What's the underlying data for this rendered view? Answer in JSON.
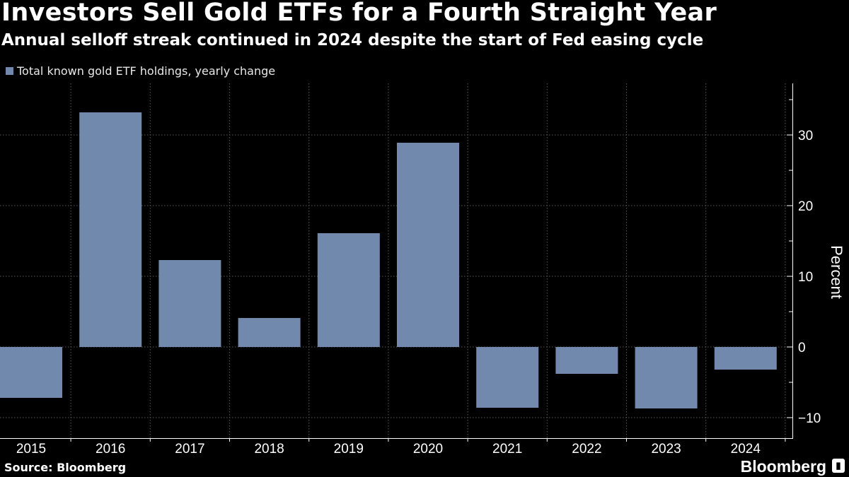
{
  "chart_data": {
    "type": "bar",
    "title": "Investors Sell Gold ETFs for a Fourth Straight Year",
    "subtitle": "Annual selloff streak continued in 2024 despite the start of Fed easing cycle",
    "legend": "Total known gold ETF holdings, yearly change",
    "categories": [
      "2015",
      "2016",
      "2017",
      "2018",
      "2019",
      "2020",
      "2021",
      "2022",
      "2023",
      "2024"
    ],
    "values": [
      -7.2,
      33.2,
      12.3,
      4.1,
      16.1,
      28.9,
      -8.6,
      -3.8,
      -8.7,
      -3.2
    ],
    "ylabel": "Percent",
    "ylim": [
      -13,
      37
    ],
    "yticks": [
      "30",
      "20",
      "10",
      "0",
      "−10"
    ],
    "ytick_values": [
      30,
      20,
      10,
      0,
      -10
    ],
    "grid": true,
    "bar_color": "#7189ac",
    "source": "Source: Bloomberg",
    "brand": "Bloomberg"
  }
}
